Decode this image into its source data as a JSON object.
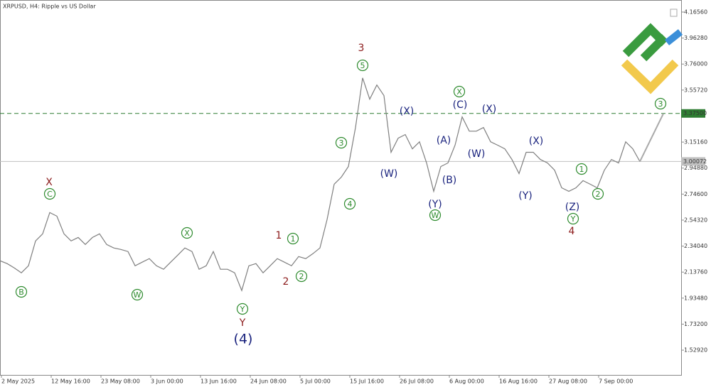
{
  "chart_data": {
    "type": "line",
    "title": "XRPUSD, H4:  Ripple vs US Dollar",
    "color": "#7f7f7f",
    "values": [
      2.226,
      2.204,
      2.171,
      2.132,
      2.187,
      2.381,
      2.436,
      2.602,
      2.574,
      2.436,
      2.381,
      2.408,
      2.353,
      2.408,
      2.436,
      2.353,
      2.326,
      2.314,
      2.298,
      2.187,
      2.215,
      2.243,
      2.187,
      2.16,
      2.215,
      2.27,
      2.326,
      2.298,
      2.16,
      2.187,
      2.298,
      2.16,
      2.16,
      2.132,
      1.994,
      2.187,
      2.204,
      2.132,
      2.187,
      2.243,
      2.215,
      2.187,
      2.259,
      2.243,
      2.281,
      2.326,
      2.547,
      2.823,
      2.878,
      2.961,
      3.265,
      3.652,
      3.486,
      3.597,
      3.514,
      3.072,
      3.182,
      3.21,
      3.099,
      3.154,
      2.989,
      2.768,
      2.961,
      2.989,
      3.127,
      3.348,
      3.237,
      3.237,
      3.265,
      3.154,
      3.127,
      3.099,
      3.016,
      2.906,
      3.072,
      3.072,
      3.016,
      2.989,
      2.933,
      2.795,
      2.768,
      2.795,
      2.851,
      2.823,
      2.795,
      2.933,
      3.016,
      2.989,
      3.154,
      3.099,
      3.0
    ],
    "x_labels": [
      "2 May 2025",
      "12 May 16:00",
      "23 May 08:00",
      "3 Jun 00:00",
      "13 Jun 16:00",
      "24 Jun 08:00",
      "5 Jul 00:00",
      "15 Jul 16:00",
      "26 Jul 08:00",
      "6 Aug 00:00",
      "16 Aug 16:00",
      "27 Aug 08:00",
      "7 Sep 00:00"
    ],
    "ylim": [
      1.3358,
      4.2596
    ],
    "yticks": [
      {
        "value": 1.5292,
        "label": "1.52920"
      },
      {
        "value": 1.732,
        "label": "1.73200"
      },
      {
        "value": 1.9348,
        "label": "1.93480"
      },
      {
        "value": 2.1376,
        "label": "2.13760"
      },
      {
        "value": 2.3404,
        "label": "2.34040"
      },
      {
        "value": 2.5432,
        "label": "2.54320"
      },
      {
        "value": 2.746,
        "label": "2.74600"
      },
      {
        "value": 2.9488,
        "label": "2.94880"
      },
      {
        "value": 3.1516,
        "label": "3.15160"
      },
      {
        "value": 3.5572,
        "label": "3.55720"
      },
      {
        "value": 3.76,
        "label": "3.76000"
      },
      {
        "value": 3.9628,
        "label": "3.96280"
      },
      {
        "value": 4.1656,
        "label": "4.16560"
      }
    ],
    "hlines": [
      {
        "value": 3.375,
        "label": "3.37500",
        "color": "#2e7d32",
        "dashed": true
      },
      {
        "value": 3.00072,
        "label": "3.00072",
        "color": "#c0c0c0",
        "dashed": false
      }
    ],
    "annotations": [
      {
        "text": "B",
        "color": "#2e8b2e",
        "circled": true
      },
      {
        "text": "X",
        "color": "#8b1a1a",
        "circled": false
      },
      {
        "text": "C",
        "color": "#2e8b2e",
        "circled": true
      },
      {
        "text": "W",
        "color": "#2e8b2e",
        "circled": true
      },
      {
        "text": "X",
        "color": "#2e8b2e",
        "circled": true
      },
      {
        "text": "Y",
        "color": "#2e8b2e",
        "circled": true
      },
      {
        "text": "Y",
        "color": "#8b1a1a",
        "circled": false
      },
      {
        "text": "(4)",
        "color": "#1a237e",
        "circled": false
      },
      {
        "text": "1",
        "color": "#8b1a1a",
        "circled": false
      },
      {
        "text": "1",
        "color": "#2e8b2e",
        "circled": true
      },
      {
        "text": "2",
        "color": "#8b1a1a",
        "circled": false
      },
      {
        "text": "2",
        "color": "#2e8b2e",
        "circled": true
      },
      {
        "text": "3",
        "color": "#2e8b2e",
        "circled": true
      },
      {
        "text": "4",
        "color": "#2e8b2e",
        "circled": true
      },
      {
        "text": "3",
        "color": "#8b1a1a",
        "circled": false
      },
      {
        "text": "5",
        "color": "#2e8b2e",
        "circled": true
      },
      {
        "text": "(W)",
        "color": "#1a237e",
        "circled": false
      },
      {
        "text": "(X)",
        "color": "#1a237e",
        "circled": false
      },
      {
        "text": "(A)",
        "color": "#1a237e",
        "circled": false
      },
      {
        "text": "(B)",
        "color": "#1a237e",
        "circled": false
      },
      {
        "text": "(Y)",
        "color": "#1a237e",
        "circled": false
      },
      {
        "text": "W",
        "color": "#2e8b2e",
        "circled": true
      },
      {
        "text": "X",
        "color": "#2e8b2e",
        "circled": true
      },
      {
        "text": "(C)",
        "color": "#1a237e",
        "circled": false
      },
      {
        "text": "(W)",
        "color": "#1a237e",
        "circled": false
      },
      {
        "text": "(X)",
        "color": "#1a237e",
        "circled": false
      },
      {
        "text": "(X)",
        "color": "#1a237e",
        "circled": false
      },
      {
        "text": "(Y)",
        "color": "#1a237e",
        "circled": false
      },
      {
        "text": "(Z)",
        "color": "#1a237e",
        "circled": false
      },
      {
        "text": "Y",
        "color": "#2e8b2e",
        "circled": true
      },
      {
        "text": "4",
        "color": "#8b1a1a",
        "circled": false
      },
      {
        "text": "1",
        "color": "#2e8b2e",
        "circled": true
      },
      {
        "text": "2",
        "color": "#2e8b2e",
        "circled": true
      },
      {
        "text": "3",
        "color": "#2e8b2e",
        "circled": true
      }
    ]
  }
}
